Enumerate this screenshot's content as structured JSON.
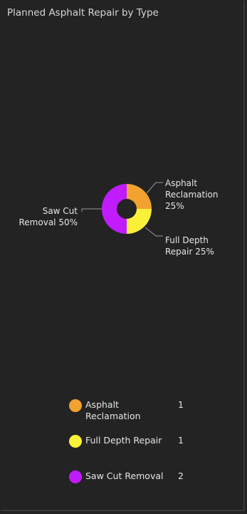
{
  "header": {
    "title": "Planned Asphalt Repair by Type"
  },
  "chart_data": {
    "type": "pie",
    "title": "Planned Asphalt Repair by Type",
    "donut": true,
    "categories": [
      "Asphalt Reclamation",
      "Full Depth Repair",
      "Saw Cut Removal"
    ],
    "values": [
      1,
      1,
      2
    ],
    "percentages": [
      "25%",
      "25%",
      "50%"
    ],
    "colors": [
      "#f2a22e",
      "#faf03a",
      "#c11bff"
    ],
    "slice_labels": [
      {
        "lines": [
          "Asphalt",
          "Reclamation",
          "25%"
        ]
      },
      {
        "lines": [
          "Full Depth",
          "Repair 25%"
        ]
      },
      {
        "lines": [
          "Saw Cut",
          "Removal 50%"
        ]
      }
    ]
  },
  "legend": {
    "items": [
      {
        "label": "Asphalt Reclamation",
        "value": "1",
        "color": "#f2a22e"
      },
      {
        "label": "Full Depth Repair",
        "value": "1",
        "color": "#faf03a"
      },
      {
        "label": "Saw Cut Removal",
        "value": "2",
        "color": "#c11bff"
      }
    ]
  }
}
